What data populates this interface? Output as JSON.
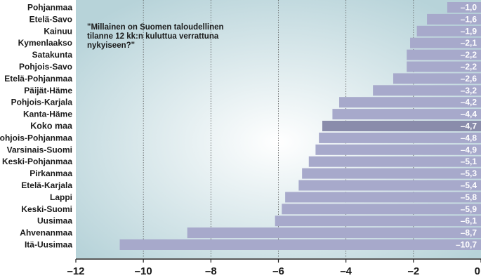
{
  "chart_data": {
    "type": "bar",
    "orientation": "horizontal",
    "annotation": "\"Millainen on Suomen taloudellinen tilanne 12 kk:n kuluttua verrattuna nykyiseen?\"",
    "categories": [
      "Pohjanmaa",
      "Etelä-Savo",
      "Kainuu",
      "Kymenlaakso",
      "Satakunta",
      "Pohjois-Savo",
      "Etelä-Pohjanmaa",
      "Päijät-Häme",
      "Pohjois-Karjala",
      "Kanta-Häme",
      "Koko maa",
      "Pohjois-Pohjanmaa",
      "Varsinais-Suomi",
      "Keski-Pohjanmaa",
      "Pirkanmaa",
      "Etelä-Karjala",
      "Lappi",
      "Keski-Suomi",
      "Uusimaa",
      "Ahvenanmaa",
      "Itä-Uusimaa"
    ],
    "values": [
      -1.0,
      -1.6,
      -1.9,
      -2.1,
      -2.2,
      -2.2,
      -2.6,
      -3.2,
      -4.2,
      -4.4,
      -4.7,
      -4.8,
      -4.9,
      -5.1,
      -5.3,
      -5.4,
      -5.8,
      -5.9,
      -6.1,
      -8.7,
      -10.7
    ],
    "value_labels": [
      "–1,0",
      "–1,6",
      "–1,9",
      "–2,1",
      "–2,2",
      "–2,2",
      "–2,6",
      "–3,2",
      "–4,2",
      "–4,4",
      "–4,7",
      "–4,8",
      "–4,9",
      "–5,1",
      "–5,3",
      "–5,4",
      "–5,8",
      "–5,9",
      "–6,1",
      "–8,7",
      "–10,7"
    ],
    "highlight": "Koko maa",
    "xlim": [
      -12,
      0
    ],
    "xticks": [
      -12,
      -10,
      -8,
      -6,
      -4,
      -2,
      0
    ],
    "xtick_labels": [
      "–12",
      "–10",
      "–8",
      "–6",
      "–4",
      "–2",
      "0"
    ],
    "grid": "vertical dotted",
    "colors": {
      "bar": "#a7a9cb",
      "highlight_bar": "#8a8cab",
      "panel_edge": "#b7d3d9",
      "panel_center": "#ffffff"
    }
  }
}
